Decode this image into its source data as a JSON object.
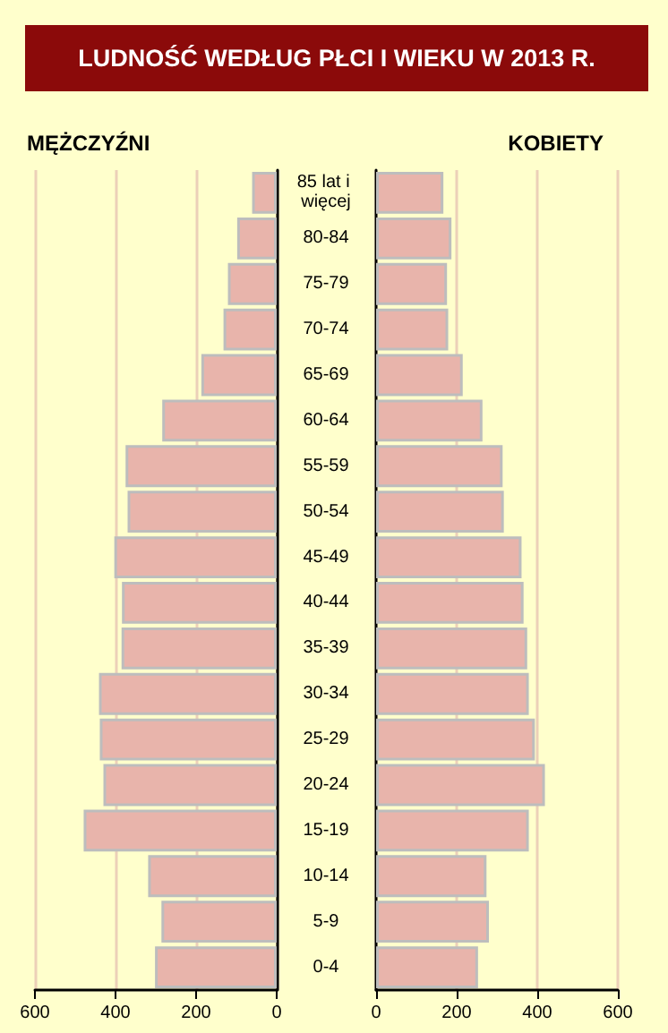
{
  "chart_data": [
    {
      "type": "bar",
      "orientation": "horizontal",
      "title": "LUDNOŚĆ WEDŁUG PŁCI I WIEKU W 2013 R.",
      "categories": [
        "85 lat i więcej",
        "80-84",
        "75-79",
        "70-74",
        "65-69",
        "60-64",
        "55-59",
        "50-54",
        "45-49",
        "40-44",
        "35-39",
        "30-34",
        "25-29",
        "20-24",
        "15-19",
        "10-14",
        "5-9",
        "0-4"
      ],
      "series": [
        {
          "name": "MĘŻCZYŹNI",
          "color": "#e8b4ab",
          "values": [
            61,
            98,
            121,
            132,
            187,
            284,
            375,
            370,
            403,
            384,
            385,
            441,
            439,
            430,
            479,
            319,
            286,
            302
          ]
        }
      ],
      "xlim": [
        600,
        0
      ],
      "xticks": [
        600,
        400,
        200,
        0
      ],
      "grid": "x"
    },
    {
      "type": "bar",
      "orientation": "horizontal",
      "categories": [
        "85 lat i więcej",
        "80-84",
        "75-79",
        "70-74",
        "65-69",
        "60-64",
        "55-59",
        "50-54",
        "45-49",
        "40-44",
        "35-39",
        "30-34",
        "25-29",
        "20-24",
        "15-19",
        "10-14",
        "5-9",
        "0-4"
      ],
      "series": [
        {
          "name": "KOBIETY",
          "color": "#e8b4ab",
          "values": [
            167,
            187,
            176,
            179,
            215,
            264,
            314,
            317,
            361,
            366,
            375,
            379,
            394,
            419,
            379,
            274,
            280,
            253
          ]
        }
      ],
      "xlim": [
        0,
        600
      ],
      "xticks": [
        0,
        200,
        400,
        600
      ],
      "grid": "x",
      "tick_labels": "x"
    }
  ]
}
